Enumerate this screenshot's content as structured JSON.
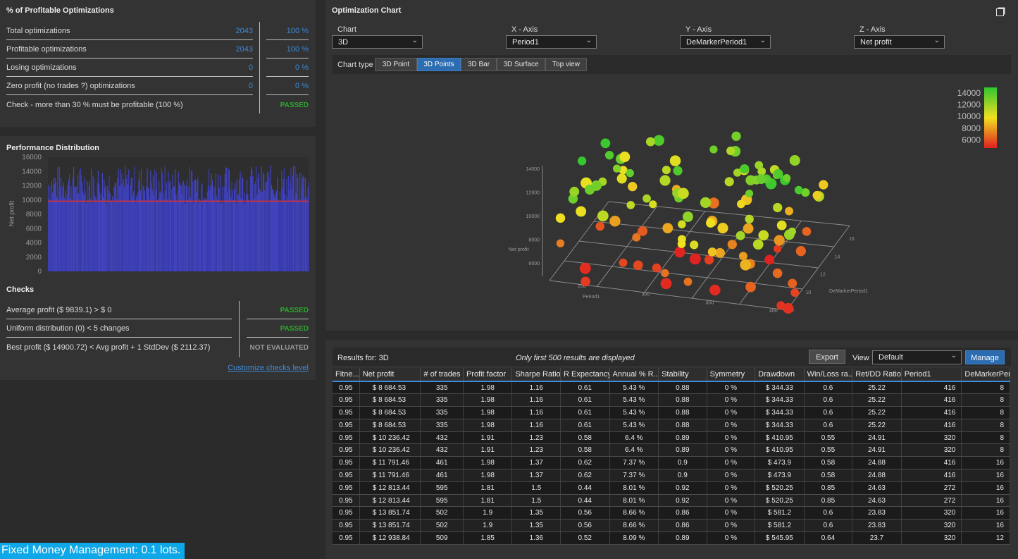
{
  "profitable": {
    "title": "% of Profitable Optimizations",
    "rows": [
      {
        "label": "Total optimizations",
        "count": "2043",
        "pct": "100 %"
      },
      {
        "label": "Profitable optimizations",
        "count": "2043",
        "pct": "100 %"
      },
      {
        "label": "Losing optimizations",
        "count": "0",
        "pct": "0 %"
      },
      {
        "label": "Zero profit (no trades ?) optimizations",
        "count": "0",
        "pct": "0 %"
      }
    ],
    "check_label": "Check - more than 30 % must be profitable (100 %)",
    "check_status": "PASSED"
  },
  "distribution": {
    "title": "Performance Distribution",
    "ylabel": "Net profit",
    "yticks": [
      "16000",
      "14000",
      "12000",
      "10000",
      "8000",
      "6000",
      "4000",
      "2000",
      "0"
    ],
    "average": 9839.1
  },
  "checks": {
    "title": "Checks",
    "rows": [
      {
        "label": "Average profit ($ 9839.1) > $ 0",
        "status": "PASSED"
      },
      {
        "label": "Uniform distribution (0) < 5 changes",
        "status": "PASSED"
      },
      {
        "label": "Best profit ($ 14900.72) < Avg profit + 1 StdDev ($ 2112.37)",
        "status": "NOT EVALUATED"
      }
    ],
    "link": "Customize checks level"
  },
  "opt_chart": {
    "title": "Optimization Chart",
    "chart_label": "Chart",
    "chart_value": "3D",
    "x_label": "X - Axis",
    "x_value": "Period1",
    "y_label": "Y - Axis",
    "y_value": "DeMarkerPeriod1",
    "z_label": "Z - Axis",
    "z_value": "Net profit",
    "chart_type_label": "Chart type",
    "chart_types": [
      "3D Point",
      "3D Points",
      "3D Bar",
      "3D Surface",
      "Top view"
    ],
    "active_type": "3D Points",
    "legend_ticks": [
      "14000",
      "12000",
      "10000",
      "8000",
      "6000"
    ],
    "axis_z_ticks": [
      "14000",
      "12000",
      "10000",
      "8000",
      "6000"
    ],
    "axis_z_title": "Net profit",
    "axis_x_ticks": [
      "250",
      "300",
      "350",
      "400"
    ],
    "axis_x_title": "Period1",
    "axis_y_ticks": [
      "16",
      "14",
      "12",
      "10",
      "8"
    ],
    "axis_y_title": "DeMarkerPeriod1"
  },
  "results": {
    "results_for": "Results for: 3D",
    "note": "Only first 500 results are displayed",
    "export_label": "Export",
    "view_label": "View",
    "view_value": "Default",
    "manage_label": "Manage",
    "columns": [
      "Fitne...",
      "Net profit",
      "# of trades",
      "Profit factor",
      "Sharpe Ratio",
      "R Expectancy",
      "Annual % R...",
      "Stability",
      "Symmetry",
      "Drawdown",
      "Win/Loss ra...",
      "Ret/DD Ratio",
      "Period1",
      "DeMarkerPerio..."
    ],
    "rows": [
      [
        "0.95",
        "$ 8 684.53",
        "335",
        "1.98",
        "1.16",
        "0.61",
        "5.43 %",
        "0.88",
        "0 %",
        "$ 344.33",
        "0.6",
        "25.22",
        "416",
        "8"
      ],
      [
        "0.95",
        "$ 8 684.53",
        "335",
        "1.98",
        "1.16",
        "0.61",
        "5.43 %",
        "0.88",
        "0 %",
        "$ 344.33",
        "0.6",
        "25.22",
        "416",
        "8"
      ],
      [
        "0.95",
        "$ 8 684.53",
        "335",
        "1.98",
        "1.16",
        "0.61",
        "5.43 %",
        "0.88",
        "0 %",
        "$ 344.33",
        "0.6",
        "25.22",
        "416",
        "8"
      ],
      [
        "0.95",
        "$ 8 684.53",
        "335",
        "1.98",
        "1.16",
        "0.61",
        "5.43 %",
        "0.88",
        "0 %",
        "$ 344.33",
        "0.6",
        "25.22",
        "416",
        "8"
      ],
      [
        "0.95",
        "$ 10 236.42",
        "432",
        "1.91",
        "1.23",
        "0.58",
        "6.4 %",
        "0.89",
        "0 %",
        "$ 410.95",
        "0.55",
        "24.91",
        "320",
        "8"
      ],
      [
        "0.95",
        "$ 10 236.42",
        "432",
        "1.91",
        "1.23",
        "0.58",
        "6.4 %",
        "0.89",
        "0 %",
        "$ 410.95",
        "0.55",
        "24.91",
        "320",
        "8"
      ],
      [
        "0.95",
        "$ 11 791.46",
        "461",
        "1.98",
        "1.37",
        "0.62",
        "7.37 %",
        "0.9",
        "0 %",
        "$ 473.9",
        "0.58",
        "24.88",
        "416",
        "16"
      ],
      [
        "0.95",
        "$ 11 791.46",
        "461",
        "1.98",
        "1.37",
        "0.62",
        "7.37 %",
        "0.9",
        "0 %",
        "$ 473.9",
        "0.58",
        "24.88",
        "416",
        "16"
      ],
      [
        "0.95",
        "$ 12 813.44",
        "595",
        "1.81",
        "1.5",
        "0.44",
        "8.01 %",
        "0.92",
        "0 %",
        "$ 520.25",
        "0.85",
        "24.63",
        "272",
        "16"
      ],
      [
        "0.95",
        "$ 12 813.44",
        "595",
        "1.81",
        "1.5",
        "0.44",
        "8.01 %",
        "0.92",
        "0 %",
        "$ 520.25",
        "0.85",
        "24.63",
        "272",
        "16"
      ],
      [
        "0.95",
        "$ 13 851.74",
        "502",
        "1.9",
        "1.35",
        "0.56",
        "8.66 %",
        "0.86",
        "0 %",
        "$ 581.2",
        "0.6",
        "23.83",
        "320",
        "16"
      ],
      [
        "0.95",
        "$ 13 851.74",
        "502",
        "1.9",
        "1.35",
        "0.56",
        "8.66 %",
        "0.86",
        "0 %",
        "$ 581.2",
        "0.6",
        "23.83",
        "320",
        "16"
      ],
      [
        "0.95",
        "$ 12 938.84",
        "509",
        "1.85",
        "1.36",
        "0.52",
        "8.09 %",
        "0.89",
        "0 %",
        "$ 545.95",
        "0.64",
        "23.7",
        "320",
        "12"
      ]
    ]
  },
  "footer": {
    "mm_label": "Fixed Money Management: 0.1 lots."
  },
  "colors": {
    "accent": "#3d8bd9",
    "passed": "#2fa52f",
    "avg_line": "#e03030",
    "bars": "#3b3db5"
  }
}
